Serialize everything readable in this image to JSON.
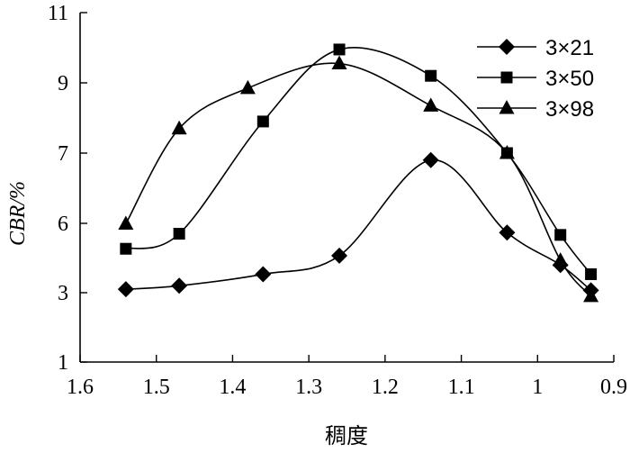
{
  "chart_data": {
    "type": "line",
    "xlabel": "稠度",
    "ylabel": "CBR/%",
    "xlim": [
      1.6,
      0.9
    ],
    "ylim": [
      1,
      11
    ],
    "x_ticks": [
      "1.6",
      "1.5",
      "1.4",
      "1.3",
      "1.2",
      "1.1",
      "1",
      "0.9"
    ],
    "y_ticks": [
      "1",
      "3",
      "6",
      "7",
      "9",
      "11"
    ],
    "legend_position": "top-right",
    "series": [
      {
        "name": "3×21",
        "marker": "diamond",
        "x": [
          1.54,
          1.47,
          1.36,
          1.26,
          1.14,
          1.04,
          0.97,
          0.93
        ],
        "y": [
          3.15,
          3.3,
          3.8,
          4.6,
          6.9,
          5.6,
          4.2,
          3.1
        ]
      },
      {
        "name": "3×50",
        "marker": "square",
        "x": [
          1.54,
          1.47,
          1.36,
          1.26,
          1.14,
          1.04,
          0.97,
          0.93
        ],
        "y": [
          4.9,
          5.55,
          7.9,
          9.95,
          9.2,
          7.0,
          5.5,
          3.8
        ]
      },
      {
        "name": "3×98",
        "marker": "triangle",
        "x": [
          1.54,
          1.47,
          1.38,
          1.26,
          1.14,
          1.04,
          0.97,
          0.93
        ],
        "y": [
          5.98,
          7.7,
          8.85,
          9.55,
          8.35,
          7.0,
          4.4,
          2.9
        ]
      }
    ]
  }
}
